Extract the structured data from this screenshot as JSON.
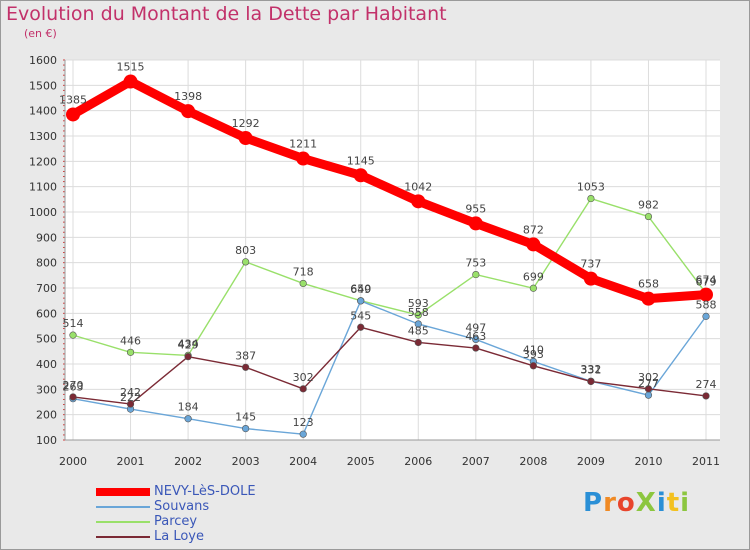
{
  "header": {
    "title": "Evolution du Montant de la Dette par Habitant",
    "unit": "(en €)"
  },
  "logo": {
    "text": "ProXiti",
    "colors": [
      "#2a8fd6",
      "#f08a24",
      "#e8452c",
      "#8cc63f",
      "#2a8fd6",
      "#f3c11f",
      "#8cc63f"
    ]
  },
  "chart_data": {
    "type": "line",
    "title": "Evolution du Montant de la Dette par Habitant",
    "ylabel": "(en €)",
    "xlabel": "",
    "categories": [
      "2000",
      "2001",
      "2002",
      "2003",
      "2004",
      "2005",
      "2006",
      "2007",
      "2008",
      "2009",
      "2010",
      "2011"
    ],
    "ylim": [
      100,
      1600
    ],
    "yticks": [
      100,
      200,
      300,
      400,
      500,
      600,
      700,
      800,
      900,
      1000,
      1100,
      1200,
      1300,
      1400,
      1500,
      1600
    ],
    "grid": true,
    "legend_position": "bottom-left",
    "series": [
      {
        "name": "NEVY-LèS-DOLE",
        "color": "#ff0000",
        "values": [
          1385,
          1515,
          1398,
          1292,
          1211,
          1145,
          1042,
          955,
          872,
          737,
          658,
          674
        ]
      },
      {
        "name": "Souvans",
        "color": "#6aa6d8",
        "values": [
          263,
          222,
          184,
          145,
          123,
          649,
          558,
          497,
          410,
          332,
          277,
          588
        ]
      },
      {
        "name": "Parcey",
        "color": "#99e06a",
        "values": [
          514,
          446,
          434,
          803,
          718,
          650,
          593,
          753,
          699,
          1053,
          982,
          679
        ]
      },
      {
        "name": "La Loye",
        "color": "#7b2a35",
        "values": [
          270,
          242,
          429,
          387,
          302,
          545,
          485,
          463,
          393,
          331,
          302,
          274
        ]
      }
    ]
  }
}
